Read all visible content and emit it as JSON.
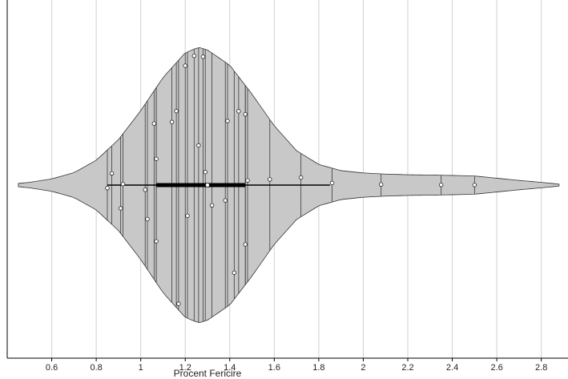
{
  "chart_data": {
    "type": "violin",
    "title": "",
    "xlabel": "Procent Fericire",
    "ylabel": "",
    "xlim": [
      0.4,
      2.92
    ],
    "x_ticks": [
      0.6,
      0.8,
      1,
      1.2,
      1.4,
      1.6,
      1.8,
      2,
      2.2,
      2.4,
      2.6,
      2.8
    ],
    "x_tick_labels": [
      "0.6",
      "0.8",
      "1",
      "1.2",
      "1.4",
      "1.6",
      "1.8",
      "2",
      "2.2",
      "2.4",
      "2.6",
      "2.8"
    ],
    "grid": true,
    "median": 1.3,
    "quartiles": [
      1.07,
      1.47
    ],
    "whiskers": [
      0.85,
      1.85
    ],
    "violin_density": [
      [
        0.45,
        0.012
      ],
      [
        0.5,
        0.02
      ],
      [
        0.6,
        0.045
      ],
      [
        0.7,
        0.09
      ],
      [
        0.8,
        0.18
      ],
      [
        0.9,
        0.33
      ],
      [
        1.0,
        0.54
      ],
      [
        1.1,
        0.78
      ],
      [
        1.2,
        0.96
      ],
      [
        1.26,
        1.0
      ],
      [
        1.3,
        0.98
      ],
      [
        1.4,
        0.87
      ],
      [
        1.5,
        0.66
      ],
      [
        1.6,
        0.43
      ],
      [
        1.7,
        0.25
      ],
      [
        1.8,
        0.15
      ],
      [
        1.9,
        0.105
      ],
      [
        2.0,
        0.088
      ],
      [
        2.1,
        0.08
      ],
      [
        2.2,
        0.075
      ],
      [
        2.3,
        0.073
      ],
      [
        2.4,
        0.07
      ],
      [
        2.5,
        0.066
      ],
      [
        2.6,
        0.05
      ],
      [
        2.7,
        0.034
      ],
      [
        2.8,
        0.02
      ],
      [
        2.88,
        0.007
      ]
    ],
    "points": [
      [
        0.85,
        -0.09
      ],
      [
        0.87,
        0.31
      ],
      [
        0.91,
        -0.5
      ],
      [
        0.92,
        0.02
      ],
      [
        1.02,
        -0.06
      ],
      [
        1.03,
        -0.42
      ],
      [
        1.06,
        0.68
      ],
      [
        1.07,
        -0.6
      ],
      [
        1.07,
        0.28
      ],
      [
        1.14,
        0.56
      ],
      [
        1.16,
        0.63
      ],
      [
        1.17,
        -0.99
      ],
      [
        1.2,
        0.94
      ],
      [
        1.21,
        -0.24
      ],
      [
        1.24,
        0.99
      ],
      [
        1.26,
        0.3
      ],
      [
        1.28,
        0.98
      ],
      [
        1.29,
        0.1
      ],
      [
        1.32,
        -0.16
      ],
      [
        1.38,
        -0.13
      ],
      [
        1.39,
        0.55
      ],
      [
        1.42,
        -0.8
      ],
      [
        1.44,
        0.71
      ],
      [
        1.47,
        0.74
      ],
      [
        1.47,
        -0.62
      ],
      [
        1.48,
        0.05
      ],
      [
        1.58,
        0.09
      ],
      [
        1.72,
        0.25
      ],
      [
        1.86,
        0.13
      ],
      [
        2.08,
        0.06
      ],
      [
        2.35,
        0.02
      ],
      [
        2.5,
        0.01
      ]
    ]
  }
}
